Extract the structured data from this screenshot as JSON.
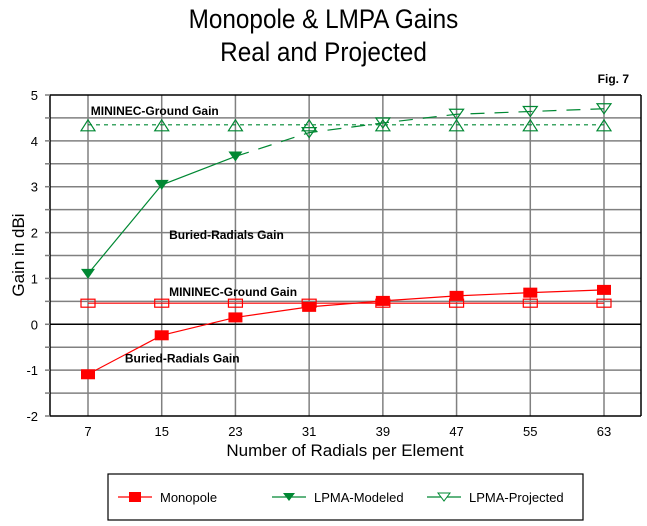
{
  "chart_data": {
    "type": "line",
    "title": "Monopole & LMPA Gains",
    "subtitle": "Real and Projected",
    "figure_label": "Fig. 7",
    "xlabel": "Number of Radials per Element",
    "ylabel": "Gain in dBi",
    "x": [
      7,
      15,
      23,
      31,
      39,
      47,
      55,
      63
    ],
    "x_ticks": [
      "7",
      "15",
      "23",
      "31",
      "39",
      "47",
      "55",
      "63"
    ],
    "ylim": [
      -2,
      5
    ],
    "y_ticks": [
      "-2",
      "-1",
      "0",
      "1",
      "2",
      "3",
      "4",
      "5"
    ],
    "grid": true,
    "minor_y_grid_step": 0.5,
    "series": [
      {
        "name": "Monopole",
        "role": "buried-radials",
        "color": "#ff0000",
        "marker": "filled-square",
        "line": "solid",
        "x": [
          7,
          15,
          23,
          31,
          39,
          47,
          55,
          63
        ],
        "values": [
          -1.09,
          -0.24,
          0.15,
          0.38,
          0.51,
          0.62,
          0.69,
          0.75
        ]
      },
      {
        "name": "Monopole MININEC-Ground",
        "role": "mininec-ground",
        "color": "#ff0000",
        "marker": "open-square",
        "line": "solid",
        "x": [
          7,
          15,
          23,
          31,
          39,
          47,
          55,
          63
        ],
        "values": [
          0.46,
          0.46,
          0.46,
          0.46,
          0.46,
          0.46,
          0.46,
          0.46
        ]
      },
      {
        "name": "LPMA-Modeled",
        "role": "buried-radials",
        "color": "#008833",
        "marker": "filled-down-triangle",
        "line": "solid",
        "x": [
          7,
          15,
          23
        ],
        "values": [
          1.1,
          3.04,
          3.66
        ]
      },
      {
        "name": "LPMA-Projected",
        "role": "buried-radials",
        "color": "#008833",
        "marker": "open-down-triangle",
        "line": "long-dash",
        "x": [
          23,
          31,
          39,
          47,
          55,
          63
        ],
        "values": [
          3.66,
          4.18,
          4.39,
          4.58,
          4.64,
          4.7
        ]
      },
      {
        "name": "LPMA MININEC-Ground",
        "role": "mininec-ground",
        "color": "#008833",
        "marker": "open-up-triangle",
        "line": "dash",
        "x": [
          7,
          15,
          23,
          31,
          39,
          47,
          55,
          63
        ],
        "values": [
          4.35,
          4.35,
          4.35,
          4.35,
          4.35,
          4.35,
          4.35,
          4.35
        ]
      }
    ],
    "annotations": [
      {
        "text": "MININEC-Ground Gain",
        "near_series": "LPMA MININEC-Ground",
        "x": 7.3,
        "y": 4.65
      },
      {
        "text": "Buried-Radials Gain",
        "near_series": "LPMA-Modeled",
        "x": 15.8,
        "y": 1.95
      },
      {
        "text": "MININEC-Ground Gain",
        "near_series": "Monopole MININEC-Ground",
        "x": 15.8,
        "y": 0.7
      },
      {
        "text": "Buried-Radials Gain",
        "near_series": "Monopole",
        "x": 11.0,
        "y": -0.75
      }
    ],
    "legend": {
      "position": "bottom",
      "entries": [
        {
          "label": "Monopole",
          "color": "#ff0000",
          "marker": "filled-square"
        },
        {
          "label": "LPMA-Modeled",
          "color": "#008833",
          "marker": "filled-down-triangle"
        },
        {
          "label": "LPMA-Projected",
          "color": "#008833",
          "marker": "open-down-triangle"
        }
      ]
    }
  }
}
